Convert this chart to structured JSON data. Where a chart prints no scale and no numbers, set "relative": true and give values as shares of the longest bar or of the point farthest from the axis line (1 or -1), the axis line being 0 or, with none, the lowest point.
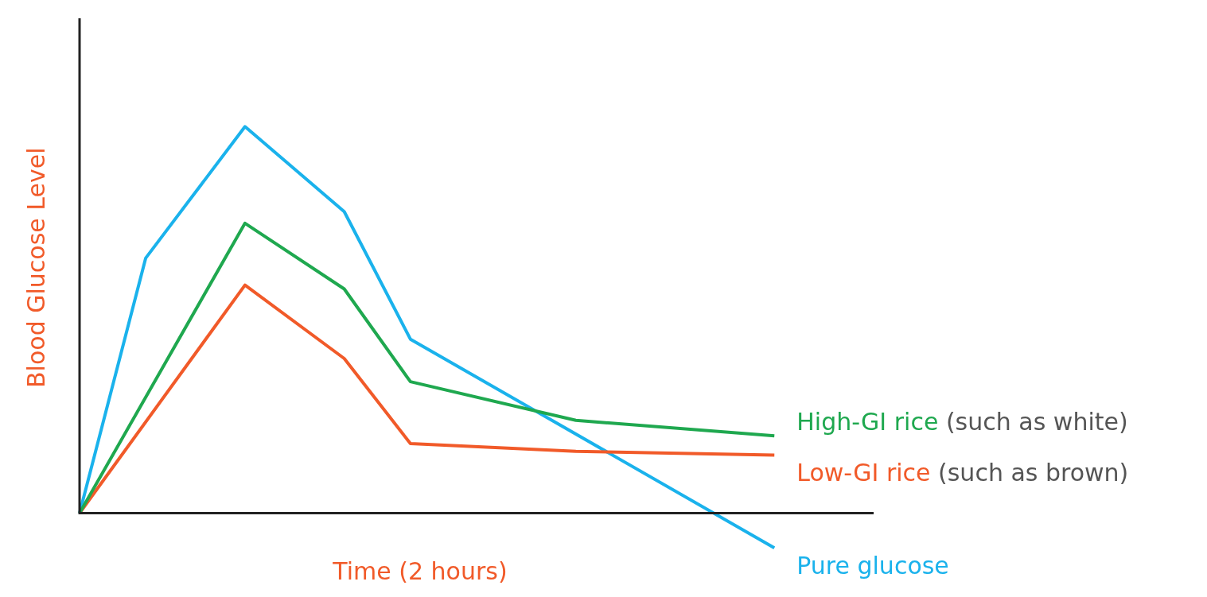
{
  "chart_data": {
    "type": "line",
    "relative": true,
    "xlabel": "Time (2 hours)",
    "ylabel": "Blood Glucose Level",
    "legend": false,
    "marker": "none",
    "categories": [
      null,
      null,
      null,
      null,
      null,
      null,
      null,
      null,
      null,
      null,
      null,
      null,
      null,
      null,
      null,
      null,
      null,
      null,
      null,
      null,
      null,
      null,
      null,
      null,
      null
    ],
    "series": [
      {
        "name": "High-GI rice (such as white)",
        "color": "#1fa84f",
        "values": [
          0,
          null,
          null,
          null,
          null,
          0.75,
          null,
          null,
          0.58,
          null,
          0.34,
          null,
          null,
          null,
          null,
          0.24,
          null,
          null,
          null,
          null,
          null,
          0.2,
          null,
          null,
          null
        ]
      },
      {
        "name": "Low-GI rice (such as brown)",
        "color": "#f15a29",
        "values": [
          0,
          null,
          null,
          null,
          null,
          0.59,
          null,
          null,
          0.4,
          null,
          0.18,
          null,
          null,
          null,
          null,
          0.16,
          null,
          null,
          null,
          null,
          null,
          0.15,
          null,
          null,
          null
        ]
      },
      {
        "name": "Pure glucose",
        "color": "#1ab2ec",
        "values": [
          0,
          null,
          0.66,
          null,
          null,
          1,
          null,
          null,
          0.78,
          null,
          0.45,
          null,
          null,
          null,
          null,
          null,
          null,
          null,
          null,
          null,
          null,
          -0.09,
          null,
          null,
          null
        ]
      }
    ]
  }
}
